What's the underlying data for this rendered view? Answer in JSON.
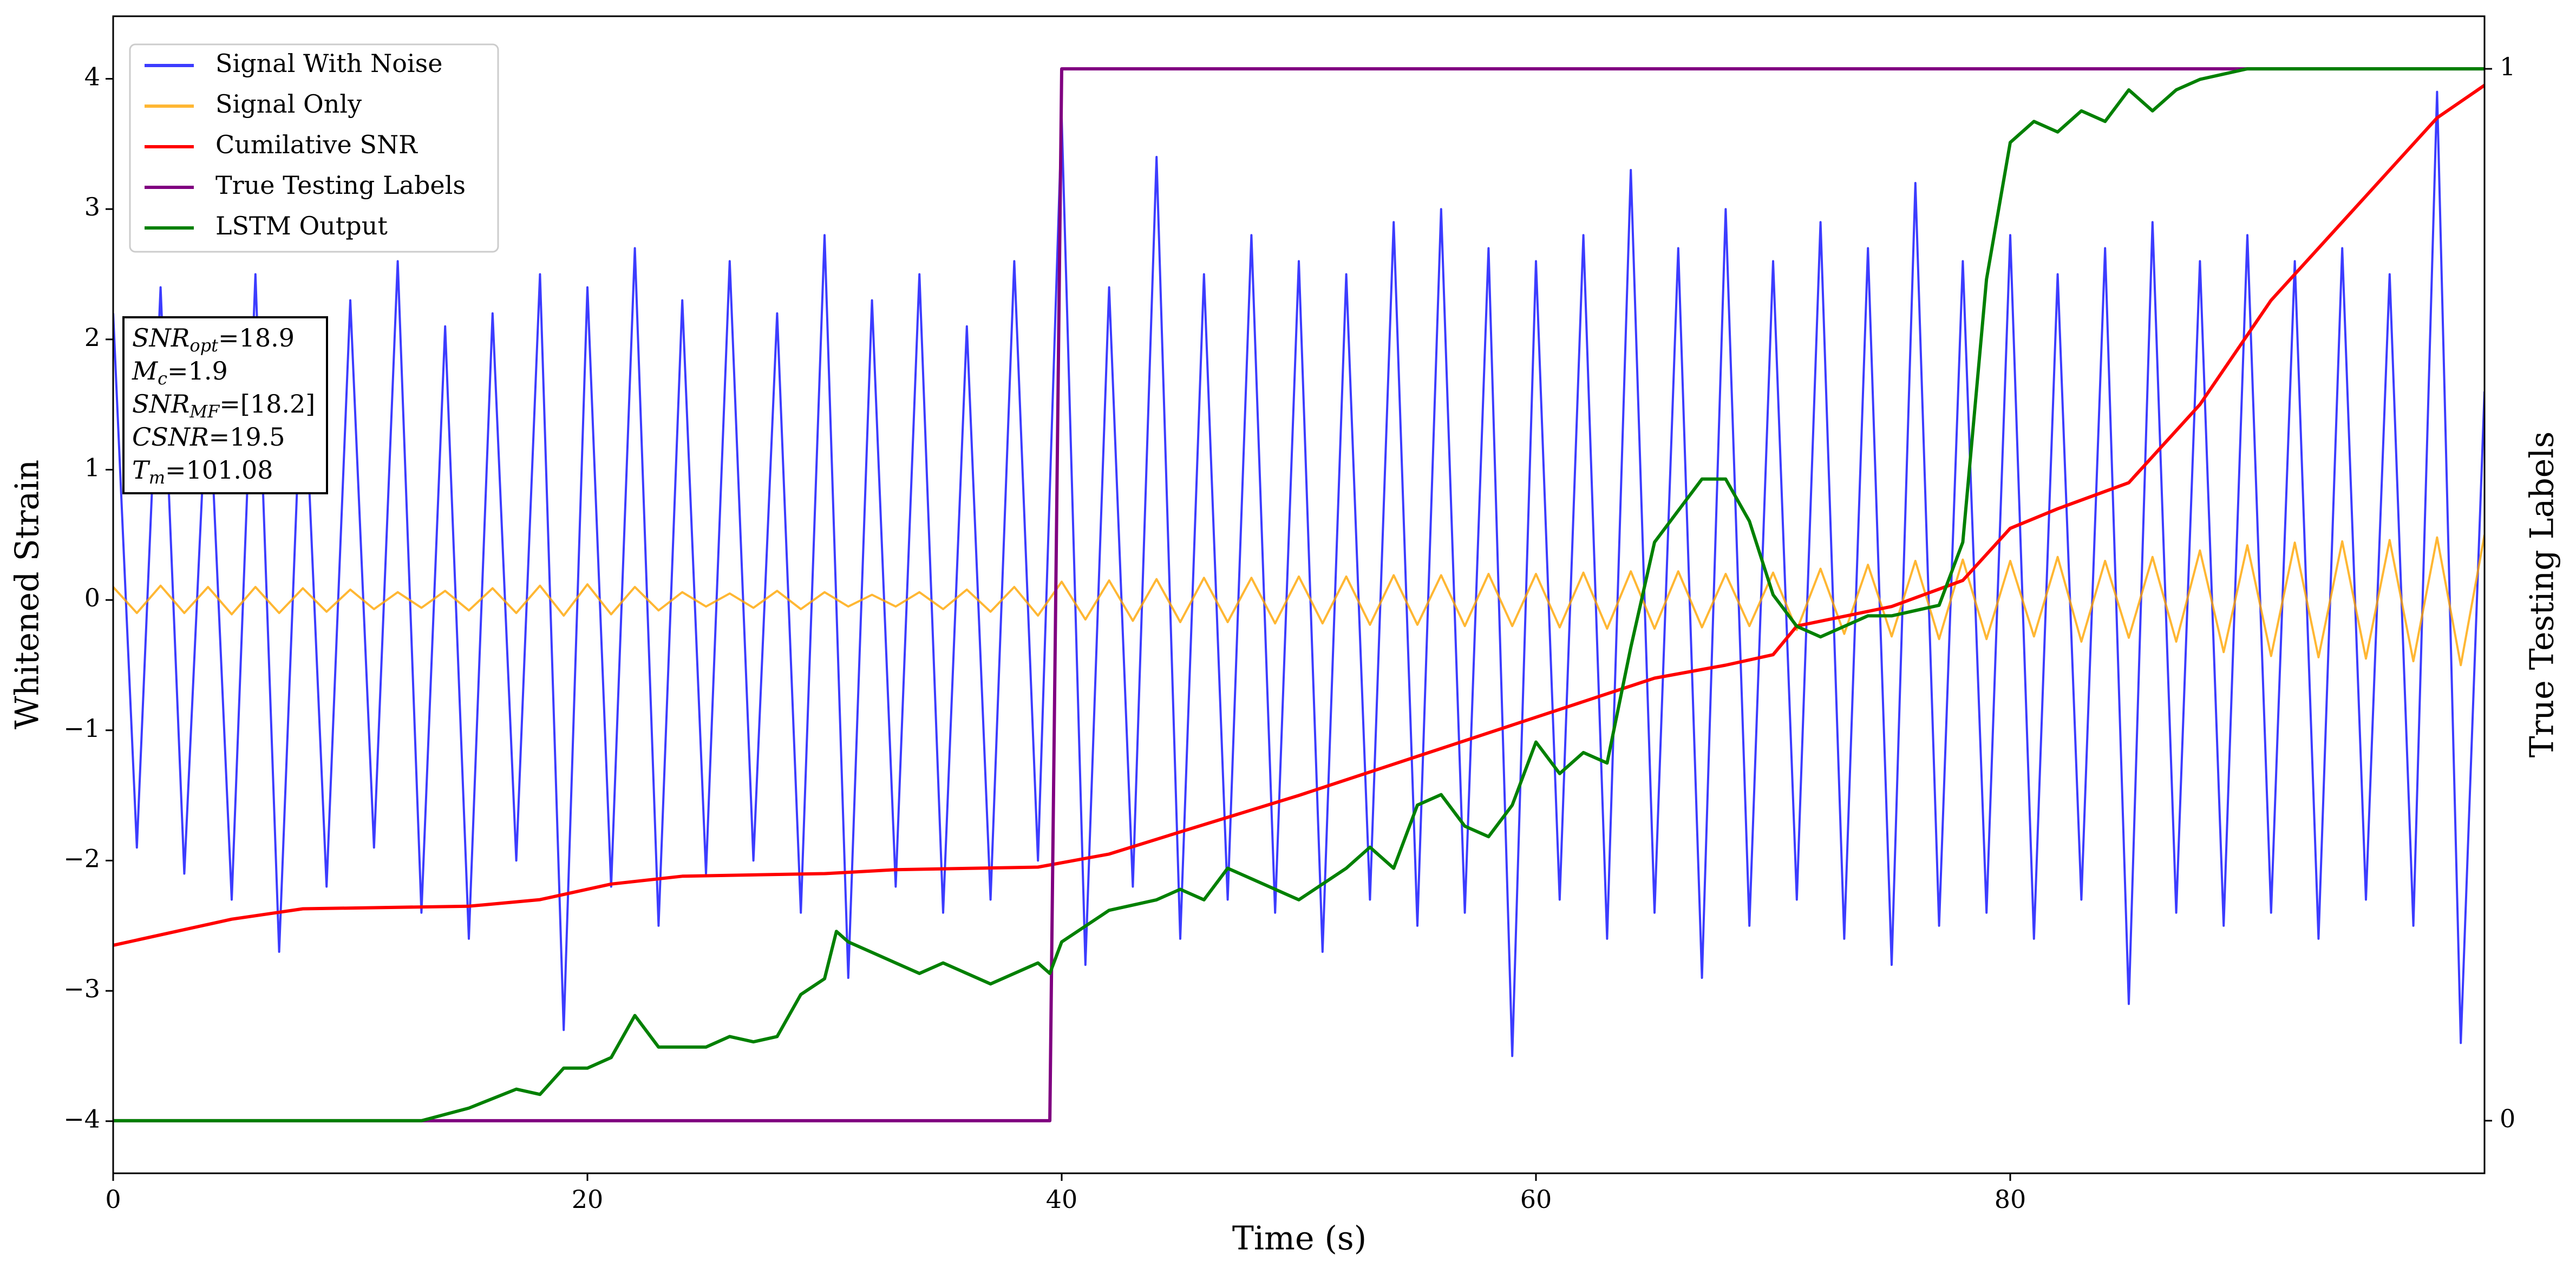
{
  "chart_data": {
    "type": "line",
    "xlabel": "Time (s)",
    "ylabel": "Whitened Strain",
    "y2label": "True Testing Labels",
    "xlim": [
      0,
      100
    ],
    "xticks": [
      0,
      20,
      40,
      60,
      80
    ],
    "ylim": [
      -4.4,
      4.48
    ],
    "yticks": [
      {
        "value": -4,
        "label": "−4"
      },
      {
        "value": -3,
        "label": "−3"
      },
      {
        "value": -2,
        "label": "−2"
      },
      {
        "value": -1,
        "label": "−1"
      },
      0,
      1,
      2,
      3,
      4
    ],
    "y2lim": [
      -0.05,
      1.05
    ],
    "y2ticks": [
      0,
      1
    ],
    "legend": "upper-left",
    "series": [
      {
        "name": "Signal With Noise",
        "color": "#1a1aff",
        "opacity": 0.85,
        "x": [
          0,
          1,
          2,
          3,
          4,
          5,
          6,
          7,
          8,
          9,
          10,
          11,
          12,
          13,
          14,
          15,
          16,
          17,
          18,
          19,
          20,
          21,
          22,
          23,
          24,
          25,
          26,
          27,
          28,
          29,
          30,
          31,
          32,
          33,
          34,
          35,
          36,
          37,
          38,
          39,
          40,
          41,
          42,
          43,
          44,
          45,
          46,
          47,
          48,
          49,
          50,
          51,
          52,
          53,
          54,
          55,
          56,
          57,
          58,
          59,
          60,
          61,
          62,
          63,
          64,
          65,
          66,
          67,
          68,
          69,
          70,
          71,
          72,
          73,
          74,
          75,
          76,
          77,
          78,
          79,
          80,
          81,
          82,
          83,
          84,
          85,
          86,
          87,
          88,
          89,
          90,
          91,
          92,
          93,
          94,
          95,
          96,
          97,
          98,
          99,
          100
        ],
        "values": [
          2.2,
          -1.9,
          2.4,
          -2.1,
          1.8,
          -2.3,
          2.5,
          -2.7,
          2.0,
          -2.2,
          2.3,
          -1.9,
          2.6,
          -2.4,
          2.1,
          -2.6,
          2.2,
          -2.0,
          2.5,
          -3.3,
          2.4,
          -2.2,
          2.7,
          -2.5,
          2.3,
          -2.1,
          2.6,
          -2.0,
          2.2,
          -2.4,
          2.8,
          -2.9,
          2.3,
          -2.2,
          2.5,
          -2.4,
          2.1,
          -2.3,
          2.6,
          -2.0,
          3.7,
          -2.8,
          2.4,
          -2.2,
          3.4,
          -2.6,
          2.5,
          -2.3,
          2.8,
          -2.4,
          2.6,
          -2.7,
          2.5,
          -2.3,
          2.9,
          -2.5,
          3.0,
          -2.4,
          2.7,
          -3.5,
          2.6,
          -2.3,
          2.8,
          -2.6,
          3.3,
          -2.4,
          2.7,
          -2.9,
          3.0,
          -2.5,
          2.6,
          -2.3,
          2.9,
          -2.6,
          2.7,
          -2.8,
          3.2,
          -2.5,
          2.6,
          -2.4,
          2.8,
          -2.6,
          2.5,
          -2.3,
          2.7,
          -3.1,
          2.9,
          -2.4,
          2.6,
          -2.5,
          2.8,
          -2.4,
          2.6,
          -2.6,
          2.7,
          -2.3,
          2.5,
          -2.5,
          3.9,
          -3.4,
          1.6
        ]
      },
      {
        "name": "Signal Only",
        "color": "#ffa500",
        "opacity": 0.8,
        "x": [
          0,
          1,
          2,
          3,
          4,
          5,
          6,
          7,
          8,
          9,
          10,
          11,
          12,
          13,
          14,
          15,
          16,
          17,
          18,
          19,
          20,
          21,
          22,
          23,
          24,
          25,
          26,
          27,
          28,
          29,
          30,
          31,
          32,
          33,
          34,
          35,
          36,
          37,
          38,
          39,
          40,
          41,
          42,
          43,
          44,
          45,
          46,
          47,
          48,
          49,
          50,
          51,
          52,
          53,
          54,
          55,
          56,
          57,
          58,
          59,
          60,
          61,
          62,
          63,
          64,
          65,
          66,
          67,
          68,
          69,
          70,
          71,
          72,
          73,
          74,
          75,
          76,
          77,
          78,
          79,
          80,
          81,
          82,
          83,
          84,
          85,
          86,
          87,
          88,
          89,
          90,
          91,
          92,
          93,
          94,
          95,
          96,
          97,
          98,
          99,
          100
        ],
        "values": [
          0.1,
          -0.1,
          0.11,
          -0.1,
          0.1,
          -0.11,
          0.1,
          -0.1,
          0.09,
          -0.09,
          0.08,
          -0.07,
          0.06,
          -0.06,
          0.07,
          -0.08,
          0.09,
          -0.1,
          0.11,
          -0.12,
          0.12,
          -0.11,
          0.1,
          -0.08,
          0.06,
          -0.05,
          0.05,
          -0.06,
          0.07,
          -0.07,
          0.06,
          -0.05,
          0.04,
          -0.05,
          0.06,
          -0.07,
          0.08,
          -0.09,
          0.1,
          -0.12,
          0.14,
          -0.15,
          0.15,
          -0.16,
          0.16,
          -0.17,
          0.17,
          -0.17,
          0.17,
          -0.18,
          0.18,
          -0.18,
          0.18,
          -0.19,
          0.19,
          -0.19,
          0.19,
          -0.2,
          0.2,
          -0.2,
          0.2,
          -0.21,
          0.21,
          -0.22,
          0.22,
          -0.22,
          0.22,
          -0.21,
          0.2,
          -0.2,
          0.21,
          -0.23,
          0.24,
          -0.26,
          0.27,
          -0.28,
          0.3,
          -0.3,
          0.31,
          -0.3,
          0.3,
          -0.28,
          0.33,
          -0.32,
          0.3,
          -0.29,
          0.33,
          -0.32,
          0.38,
          -0.4,
          0.42,
          -0.43,
          0.44,
          -0.44,
          0.45,
          -0.45,
          0.46,
          -0.47,
          0.48,
          -0.5,
          0.5
        ]
      },
      {
        "name": "Cumilative SNR",
        "color": "#ff0000",
        "opacity": 1,
        "x": [
          0,
          5,
          8,
          15,
          18,
          21,
          24,
          30,
          33,
          39,
          42,
          45,
          50,
          55,
          60,
          65,
          68,
          70,
          71,
          75,
          78,
          80,
          82,
          85,
          88,
          91,
          95,
          98,
          100
        ],
        "values": [
          -2.65,
          -2.45,
          -2.37,
          -2.35,
          -2.3,
          -2.18,
          -2.12,
          -2.1,
          -2.07,
          -2.05,
          -1.95,
          -1.78,
          -1.5,
          -1.2,
          -0.9,
          -0.6,
          -0.5,
          -0.42,
          -0.2,
          -0.05,
          0.15,
          0.55,
          0.7,
          0.9,
          1.5,
          2.3,
          3.1,
          3.7,
          3.95
        ]
      },
      {
        "name": "True Testing Labels",
        "color": "#800080",
        "opacity": 1,
        "axis": "y2",
        "x": [
          0,
          39.5,
          40,
          100
        ],
        "values": [
          0,
          0,
          1,
          1
        ]
      },
      {
        "name": "LSTM Output",
        "color": "#008000",
        "opacity": 1,
        "axis": "y2",
        "x": [
          0,
          13,
          15,
          17,
          18,
          19,
          20,
          21,
          22,
          23,
          25,
          26,
          27,
          28,
          29,
          30,
          30.5,
          31,
          32,
          33,
          34,
          35,
          36,
          37,
          38,
          39,
          39.5,
          40,
          42,
          44,
          45,
          46,
          47,
          48,
          50,
          52,
          53,
          54,
          55,
          56,
          57,
          58,
          59,
          60,
          61,
          62,
          63,
          64,
          65,
          66,
          67,
          68,
          69,
          70,
          71,
          72,
          74,
          75,
          77,
          78,
          79,
          80,
          81,
          82,
          83,
          84,
          85,
          86,
          87,
          88,
          90,
          100
        ],
        "values": [
          0,
          0,
          0.012,
          0.03,
          0.025,
          0.05,
          0.05,
          0.06,
          0.1,
          0.07,
          0.07,
          0.08,
          0.075,
          0.08,
          0.12,
          0.135,
          0.18,
          0.17,
          0.16,
          0.15,
          0.14,
          0.15,
          0.14,
          0.13,
          0.14,
          0.15,
          0.14,
          0.17,
          0.2,
          0.21,
          0.22,
          0.21,
          0.24,
          0.23,
          0.21,
          0.24,
          0.26,
          0.24,
          0.3,
          0.31,
          0.28,
          0.27,
          0.3,
          0.36,
          0.33,
          0.35,
          0.34,
          0.45,
          0.55,
          0.58,
          0.61,
          0.61,
          0.57,
          0.5,
          0.47,
          0.46,
          0.48,
          0.48,
          0.49,
          0.55,
          0.8,
          0.93,
          0.95,
          0.94,
          0.96,
          0.95,
          0.98,
          0.96,
          0.98,
          0.99,
          1,
          1
        ]
      }
    ],
    "annotations": [
      {
        "symbol": "SNR",
        "subscript": "opt",
        "text": "=18.9"
      },
      {
        "symbol": "M",
        "subscript": "c",
        "text": "=1.9"
      },
      {
        "symbol": "SNR",
        "subscript": "MF",
        "text": "=[18.2]"
      },
      {
        "symbol": "CSNR",
        "text": "=19.5"
      },
      {
        "symbol": "T",
        "subscript": "m",
        "text": "=101.08"
      }
    ]
  }
}
